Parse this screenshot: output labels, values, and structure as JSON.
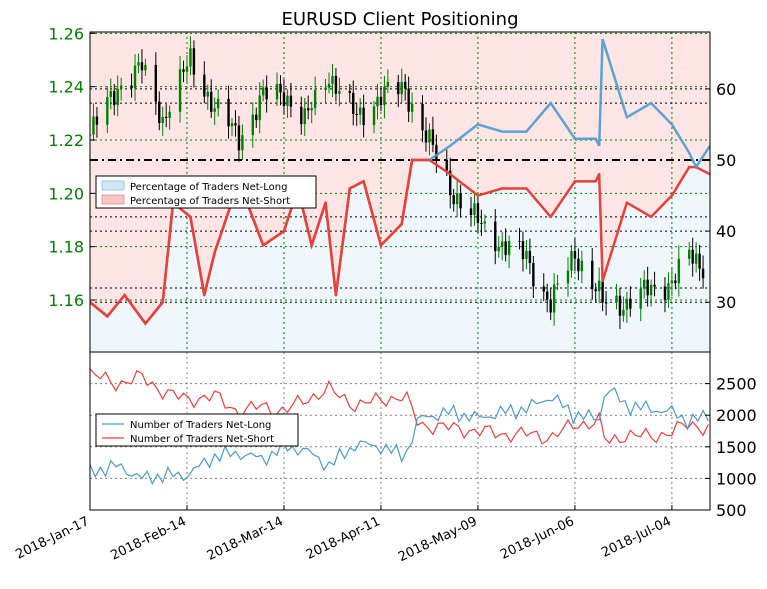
{
  "chart_data": {
    "type": "line",
    "title": "EURUSD Client Positioning",
    "colors": {
      "net_long": "#4a9bd0",
      "net_short": "#e8403a",
      "bull_candle": "#008000",
      "bear_candle": "#000000",
      "left_axis_ticks": "#008000"
    },
    "x_tick_labels": [
      "2018-Jan-17",
      "2018-Feb-14",
      "2018-Mar-14",
      "2018-Apr-11",
      "2018-May-09",
      "2018-Jun-06",
      "2018-Jul-04"
    ],
    "x_range": [
      "2018-01-17",
      "2018-07-15"
    ],
    "top_panel": {
      "left_axis": {
        "ticks": [
          1.16,
          1.18,
          1.2,
          1.22,
          1.24,
          1.26
        ],
        "range": [
          1.1405,
          1.2605
        ]
      },
      "right_axis": {
        "ticks": [
          30,
          40,
          50,
          60
        ],
        "range": [
          23,
          68
        ]
      },
      "reference_line": 50,
      "horizontal_dotted_lines_right": [
        30,
        32,
        40,
        42,
        58,
        60
      ],
      "legend": {
        "placement": "center-left",
        "entries": [
          "Percentage of Traders Net-Long",
          "Percentage of Traders Net-Short"
        ]
      },
      "candles_close_keypoints": [
        {
          "d": "2018-01-17",
          "v": 1.222
        },
        {
          "d": "2018-01-25",
          "v": 1.24
        },
        {
          "d": "2018-02-01",
          "v": 1.247
        },
        {
          "d": "2018-02-07",
          "v": 1.228
        },
        {
          "d": "2018-02-15",
          "v": 1.25
        },
        {
          "d": "2018-02-22",
          "v": 1.232
        },
        {
          "d": "2018-03-01",
          "v": 1.221
        },
        {
          "d": "2018-03-08",
          "v": 1.236
        },
        {
          "d": "2018-03-14",
          "v": 1.238
        },
        {
          "d": "2018-03-20",
          "v": 1.227
        },
        {
          "d": "2018-03-27",
          "v": 1.245
        },
        {
          "d": "2018-04-04",
          "v": 1.228
        },
        {
          "d": "2018-04-11",
          "v": 1.237
        },
        {
          "d": "2018-04-18",
          "v": 1.239
        },
        {
          "d": "2018-04-25",
          "v": 1.219
        },
        {
          "d": "2018-05-01",
          "v": 1.202
        },
        {
          "d": "2018-05-09",
          "v": 1.189
        },
        {
          "d": "2018-05-16",
          "v": 1.181
        },
        {
          "d": "2018-05-23",
          "v": 1.176
        },
        {
          "d": "2018-05-30",
          "v": 1.158
        },
        {
          "d": "2018-06-06",
          "v": 1.178
        },
        {
          "d": "2018-06-14",
          "v": 1.159
        },
        {
          "d": "2018-06-21",
          "v": 1.159
        },
        {
          "d": "2018-06-28",
          "v": 1.164
        },
        {
          "d": "2018-07-04",
          "v": 1.167
        },
        {
          "d": "2018-07-09",
          "v": 1.176
        },
        {
          "d": "2018-07-15",
          "v": 1.172
        }
      ],
      "net_short_pct": [
        {
          "d": "2018-01-17",
          "v": 30
        },
        {
          "d": "2018-01-22",
          "v": 28
        },
        {
          "d": "2018-01-27",
          "v": 31
        },
        {
          "d": "2018-02-02",
          "v": 27
        },
        {
          "d": "2018-02-07",
          "v": 30
        },
        {
          "d": "2018-02-10",
          "v": 44
        },
        {
          "d": "2018-02-15",
          "v": 42
        },
        {
          "d": "2018-02-19",
          "v": 31
        },
        {
          "d": "2018-02-22",
          "v": 37
        },
        {
          "d": "2018-03-01",
          "v": 47
        },
        {
          "d": "2018-03-08",
          "v": 38
        },
        {
          "d": "2018-03-14",
          "v": 40
        },
        {
          "d": "2018-03-18",
          "v": 46
        },
        {
          "d": "2018-03-22",
          "v": 38
        },
        {
          "d": "2018-03-26",
          "v": 44
        },
        {
          "d": "2018-03-29",
          "v": 31
        },
        {
          "d": "2018-04-02",
          "v": 46
        },
        {
          "d": "2018-04-06",
          "v": 47
        },
        {
          "d": "2018-04-11",
          "v": 38
        },
        {
          "d": "2018-04-17",
          "v": 41
        },
        {
          "d": "2018-04-20",
          "v": 50
        },
        {
          "d": "2018-04-25",
          "v": 50
        },
        {
          "d": "2018-05-01",
          "v": 48
        },
        {
          "d": "2018-05-09",
          "v": 45
        },
        {
          "d": "2018-05-16",
          "v": 46
        },
        {
          "d": "2018-05-23",
          "v": 46
        },
        {
          "d": "2018-05-30",
          "v": 42
        },
        {
          "d": "2018-06-06",
          "v": 47
        },
        {
          "d": "2018-06-12",
          "v": 47
        },
        {
          "d": "2018-06-13",
          "v": 48
        },
        {
          "d": "2018-06-14",
          "v": 33
        },
        {
          "d": "2018-06-21",
          "v": 44
        },
        {
          "d": "2018-06-28",
          "v": 42
        },
        {
          "d": "2018-07-04",
          "v": 45
        },
        {
          "d": "2018-07-09",
          "v": 49
        },
        {
          "d": "2018-07-11",
          "v": 51
        },
        {
          "d": "2018-07-15",
          "v": 48
        }
      ],
      "net_long_pct": [
        {
          "d": "2018-01-17",
          "v": 70
        },
        {
          "d": "2018-01-22",
          "v": 72
        },
        {
          "d": "2018-01-27",
          "v": 69
        },
        {
          "d": "2018-02-02",
          "v": 73
        },
        {
          "d": "2018-02-07",
          "v": 70
        },
        {
          "d": "2018-02-10",
          "v": 56
        },
        {
          "d": "2018-02-15",
          "v": 58
        },
        {
          "d": "2018-02-19",
          "v": 69
        },
        {
          "d": "2018-02-22",
          "v": 63
        },
        {
          "d": "2018-03-01",
          "v": 53
        },
        {
          "d": "2018-03-08",
          "v": 62
        },
        {
          "d": "2018-03-14",
          "v": 60
        },
        {
          "d": "2018-03-18",
          "v": 54
        },
        {
          "d": "2018-03-22",
          "v": 62
        },
        {
          "d": "2018-03-26",
          "v": 56
        },
        {
          "d": "2018-03-29",
          "v": 69
        },
        {
          "d": "2018-04-02",
          "v": 54
        },
        {
          "d": "2018-04-06",
          "v": 53
        },
        {
          "d": "2018-04-11",
          "v": 62
        },
        {
          "d": "2018-04-17",
          "v": 59
        },
        {
          "d": "2018-04-20",
          "v": 50
        },
        {
          "d": "2018-04-25",
          "v": 50
        },
        {
          "d": "2018-05-01",
          "v": 52
        },
        {
          "d": "2018-05-09",
          "v": 55
        },
        {
          "d": "2018-05-16",
          "v": 54
        },
        {
          "d": "2018-05-23",
          "v": 54
        },
        {
          "d": "2018-05-30",
          "v": 58
        },
        {
          "d": "2018-06-06",
          "v": 53
        },
        {
          "d": "2018-06-12",
          "v": 53
        },
        {
          "d": "2018-06-13",
          "v": 52
        },
        {
          "d": "2018-06-14",
          "v": 67
        },
        {
          "d": "2018-06-21",
          "v": 56
        },
        {
          "d": "2018-06-28",
          "v": 58
        },
        {
          "d": "2018-07-04",
          "v": 55
        },
        {
          "d": "2018-07-09",
          "v": 51
        },
        {
          "d": "2018-07-11",
          "v": 49
        },
        {
          "d": "2018-07-15",
          "v": 52
        }
      ]
    },
    "bottom_panel": {
      "right_axis": {
        "ticks": [
          500,
          1000,
          1500,
          2000,
          2500
        ],
        "range": [
          500,
          3000
        ]
      },
      "legend": {
        "placement": "center-left",
        "entries": [
          "Number of Traders Net-Long",
          "Number of Traders Net-Short"
        ]
      },
      "net_long_count": [
        {
          "d": "2018-01-17",
          "v": 1100
        },
        {
          "d": "2018-01-25",
          "v": 1200
        },
        {
          "d": "2018-02-01",
          "v": 1000
        },
        {
          "d": "2018-02-08",
          "v": 1050
        },
        {
          "d": "2018-02-14",
          "v": 1050
        },
        {
          "d": "2018-02-22",
          "v": 1350
        },
        {
          "d": "2018-03-01",
          "v": 1400
        },
        {
          "d": "2018-03-08",
          "v": 1300
        },
        {
          "d": "2018-03-14",
          "v": 1500
        },
        {
          "d": "2018-03-20",
          "v": 1450
        },
        {
          "d": "2018-03-27",
          "v": 1200
        },
        {
          "d": "2018-04-04",
          "v": 1550
        },
        {
          "d": "2018-04-11",
          "v": 1500
        },
        {
          "d": "2018-04-18",
          "v": 1350
        },
        {
          "d": "2018-04-22",
          "v": 1950
        },
        {
          "d": "2018-05-01",
          "v": 2050
        },
        {
          "d": "2018-05-09",
          "v": 1950
        },
        {
          "d": "2018-05-16",
          "v": 2050
        },
        {
          "d": "2018-05-23",
          "v": 2100
        },
        {
          "d": "2018-05-30",
          "v": 2300
        },
        {
          "d": "2018-06-06",
          "v": 2000
        },
        {
          "d": "2018-06-13",
          "v": 1950
        },
        {
          "d": "2018-06-15",
          "v": 2450
        },
        {
          "d": "2018-06-21",
          "v": 2150
        },
        {
          "d": "2018-06-28",
          "v": 2100
        },
        {
          "d": "2018-07-04",
          "v": 2050
        },
        {
          "d": "2018-07-09",
          "v": 1900
        },
        {
          "d": "2018-07-15",
          "v": 2000
        }
      ],
      "net_short_count": [
        {
          "d": "2018-01-17",
          "v": 2650
        },
        {
          "d": "2018-01-25",
          "v": 2500
        },
        {
          "d": "2018-02-01",
          "v": 2600
        },
        {
          "d": "2018-02-08",
          "v": 2350
        },
        {
          "d": "2018-02-14",
          "v": 2250
        },
        {
          "d": "2018-02-22",
          "v": 2300
        },
        {
          "d": "2018-03-01",
          "v": 2050
        },
        {
          "d": "2018-03-08",
          "v": 2150
        },
        {
          "d": "2018-03-14",
          "v": 2050
        },
        {
          "d": "2018-03-20",
          "v": 2250
        },
        {
          "d": "2018-03-27",
          "v": 2400
        },
        {
          "d": "2018-04-04",
          "v": 2150
        },
        {
          "d": "2018-04-11",
          "v": 2250
        },
        {
          "d": "2018-04-18",
          "v": 2300
        },
        {
          "d": "2018-04-22",
          "v": 1850
        },
        {
          "d": "2018-05-01",
          "v": 1800
        },
        {
          "d": "2018-05-09",
          "v": 1750
        },
        {
          "d": "2018-05-16",
          "v": 1700
        },
        {
          "d": "2018-05-23",
          "v": 1700
        },
        {
          "d": "2018-05-30",
          "v": 1650
        },
        {
          "d": "2018-06-06",
          "v": 1850
        },
        {
          "d": "2018-06-13",
          "v": 1900
        },
        {
          "d": "2018-06-15",
          "v": 1550
        },
        {
          "d": "2018-06-21",
          "v": 1700
        },
        {
          "d": "2018-06-28",
          "v": 1650
        },
        {
          "d": "2018-07-04",
          "v": 1750
        },
        {
          "d": "2018-07-09",
          "v": 1850
        },
        {
          "d": "2018-07-15",
          "v": 1800
        }
      ]
    }
  }
}
